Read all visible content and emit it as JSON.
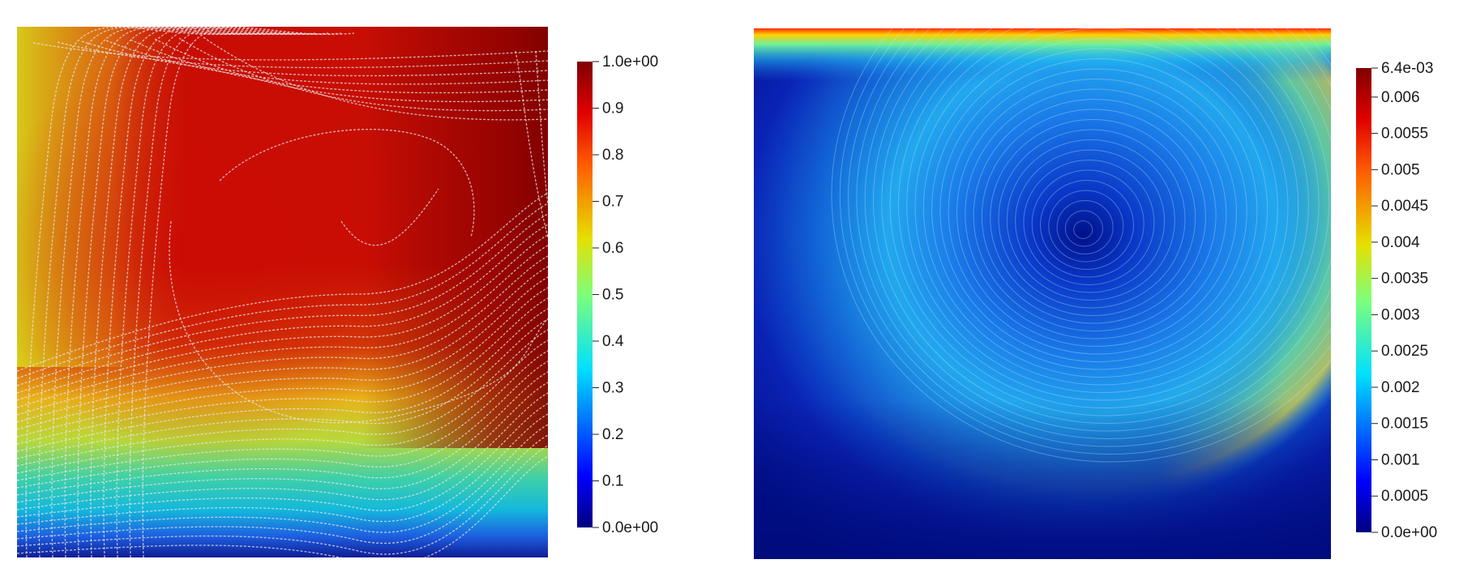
{
  "chart_data": [
    {
      "type": "heatmap",
      "title": "",
      "xlabel": "",
      "ylabel": "",
      "colormap": "jet",
      "overlay": "streamlines",
      "streamline_color": "#e8e8e8",
      "colorbar": {
        "range": [
          0.0,
          1.0
        ],
        "ticks": [
          {
            "value": 1.0,
            "label": "1.0e+00"
          },
          {
            "value": 0.9,
            "label": "0.9"
          },
          {
            "value": 0.8,
            "label": "0.8"
          },
          {
            "value": 0.7,
            "label": "0.7"
          },
          {
            "value": 0.6,
            "label": "0.6"
          },
          {
            "value": 0.5,
            "label": "0.5"
          },
          {
            "value": 0.4,
            "label": "0.4"
          },
          {
            "value": 0.3,
            "label": "0.3"
          },
          {
            "value": 0.2,
            "label": "0.2"
          },
          {
            "value": 0.1,
            "label": "0.1"
          },
          {
            "value": 0.0,
            "label": "0.0e+00"
          }
        ],
        "placement": "right"
      }
    },
    {
      "type": "heatmap",
      "title": "",
      "xlabel": "",
      "ylabel": "",
      "colormap": "jet",
      "overlay": "streamlines",
      "streamline_color": "#bfe4ff",
      "colorbar": {
        "range": [
          0.0,
          0.0064
        ],
        "ticks": [
          {
            "value": 0.0064,
            "label": "6.4e-03"
          },
          {
            "value": 0.006,
            "label": "0.006"
          },
          {
            "value": 0.0055,
            "label": "0.0055"
          },
          {
            "value": 0.005,
            "label": "0.005"
          },
          {
            "value": 0.0045,
            "label": "0.0045"
          },
          {
            "value": 0.004,
            "label": "0.004"
          },
          {
            "value": 0.0035,
            "label": "0.0035"
          },
          {
            "value": 0.003,
            "label": "0.003"
          },
          {
            "value": 0.0025,
            "label": "0.0025"
          },
          {
            "value": 0.002,
            "label": "0.002"
          },
          {
            "value": 0.0015,
            "label": "0.0015"
          },
          {
            "value": 0.001,
            "label": "0.001"
          },
          {
            "value": 0.0005,
            "label": "0.0005"
          },
          {
            "value": 0.0,
            "label": "0.0e+00"
          }
        ],
        "placement": "right"
      }
    }
  ]
}
